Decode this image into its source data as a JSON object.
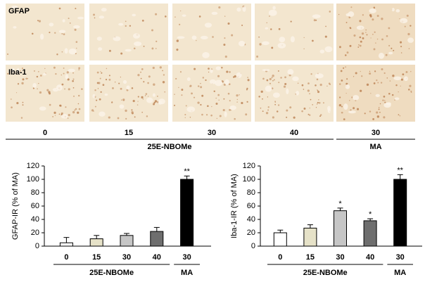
{
  "micrographs": {
    "rows": [
      "GFAP",
      "Iba-1"
    ],
    "groups": [
      {
        "name": "25E-NBOMe",
        "columns": [
          "0",
          "15",
          "30",
          "40"
        ]
      },
      {
        "name": "MA",
        "columns": [
          "30"
        ]
      }
    ]
  },
  "chart_data": [
    {
      "type": "bar",
      "y_label": "GFAP-IR (% of MA)",
      "groups": [
        {
          "name": "25E-NBOMe",
          "categories": [
            "0",
            "15",
            "30",
            "40"
          ]
        },
        {
          "name": "MA",
          "categories": [
            "30"
          ]
        }
      ],
      "values": [
        5,
        11,
        16,
        22,
        100
      ],
      "errors": [
        8,
        5,
        3,
        6,
        5
      ],
      "significance": [
        null,
        null,
        null,
        null,
        "**"
      ],
      "colors": [
        "#ffffff",
        "#e6e2c8",
        "#c6c6c6",
        "#6e6e6e",
        "#000000"
      ],
      "ylim": [
        0,
        120
      ],
      "yticks": [
        0,
        20,
        40,
        60,
        80,
        100,
        120
      ]
    },
    {
      "type": "bar",
      "y_label": "Iba-1-IR (% of MA)",
      "groups": [
        {
          "name": "25E-NBOMe",
          "categories": [
            "0",
            "15",
            "30",
            "40"
          ]
        },
        {
          "name": "MA",
          "categories": [
            "30"
          ]
        }
      ],
      "values": [
        20,
        27,
        53,
        38,
        100
      ],
      "errors": [
        4,
        5,
        4,
        3,
        7
      ],
      "significance": [
        null,
        null,
        "*",
        "*",
        "**"
      ],
      "colors": [
        "#ffffff",
        "#e6e2c8",
        "#c6c6c6",
        "#6e6e6e",
        "#000000"
      ],
      "ylim": [
        0,
        120
      ],
      "yticks": [
        0,
        20,
        40,
        60,
        80,
        100,
        120
      ]
    }
  ]
}
